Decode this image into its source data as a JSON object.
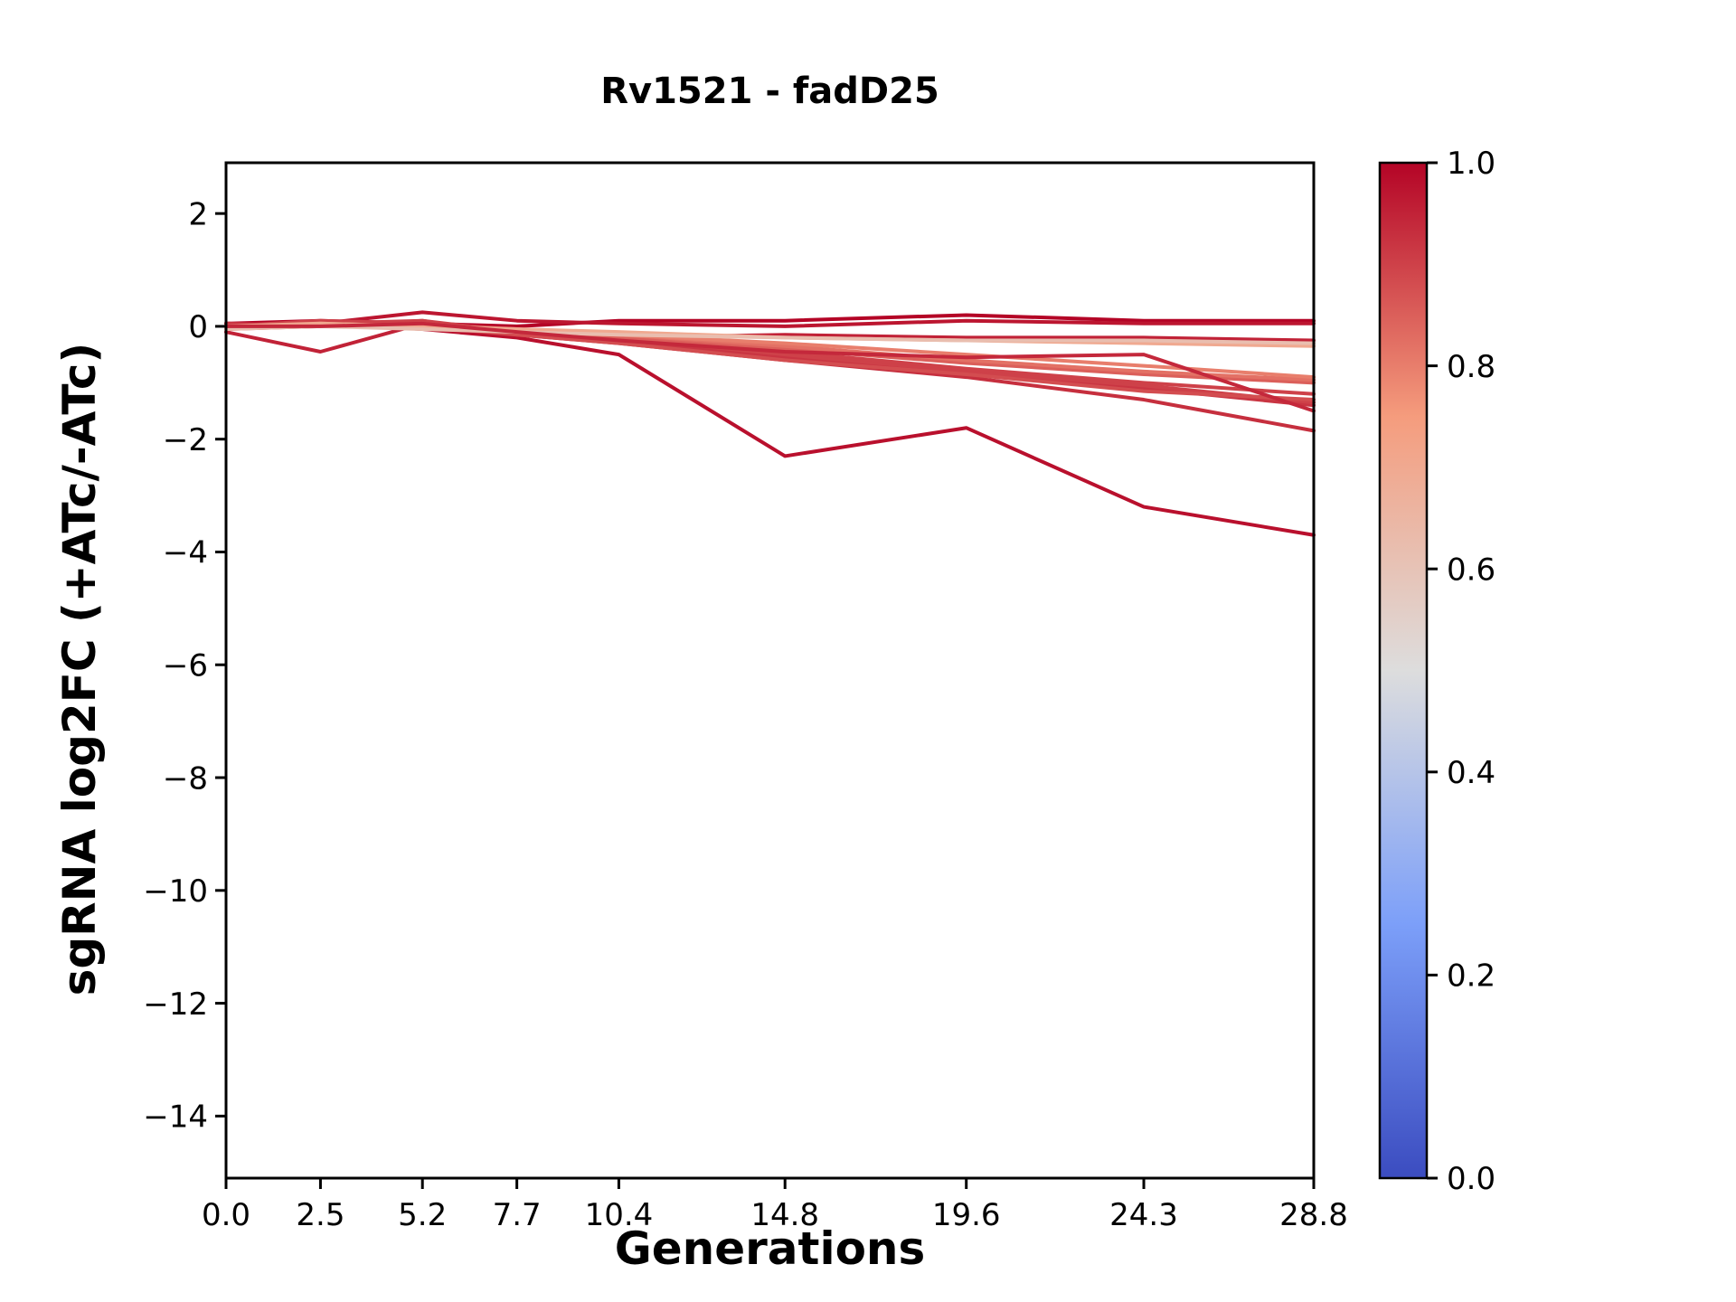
{
  "chart_data": {
    "type": "line",
    "title": "Rv1521 - fadD25",
    "xlabel": "Generations",
    "ylabel": "sgRNA log2FC (+ATc/-ATc)",
    "x": [
      0.0,
      2.5,
      5.2,
      7.7,
      10.4,
      14.8,
      19.6,
      24.3,
      28.8
    ],
    "x_tick_labels": [
      "0.0",
      "2.5",
      "5.2",
      "7.7",
      "10.4",
      "14.8",
      "19.6",
      "24.3",
      "28.8"
    ],
    "y_ticks": [
      2,
      0,
      -2,
      -4,
      -6,
      -8,
      -10,
      -12,
      -14
    ],
    "xlim": [
      0,
      28.8
    ],
    "ylim": [
      -15.1,
      2.9
    ],
    "grid": false,
    "legend": "none",
    "colorbar": {
      "range": [
        0.0,
        1.0
      ],
      "ticks": [
        1.0,
        0.8,
        0.6,
        0.4,
        0.2,
        0.0
      ],
      "colormap": "coolwarm",
      "anchors": [
        {
          "pos": 0.0,
          "color": "#3b4cc0"
        },
        {
          "pos": 0.25,
          "color": "#7c9ff9"
        },
        {
          "pos": 0.5,
          "color": "#dddddd"
        },
        {
          "pos": 0.75,
          "color": "#f59c7d"
        },
        {
          "pos": 1.0,
          "color": "#b40426"
        }
      ]
    },
    "series": [
      {
        "name": "series-01",
        "colormap_value": 1.0,
        "values": [
          0.05,
          0.1,
          0.05,
          0.0,
          0.1,
          0.1,
          0.2,
          0.1,
          0.1
        ]
      },
      {
        "name": "series-02",
        "colormap_value": 0.97,
        "values": [
          0.0,
          0.05,
          0.25,
          0.1,
          0.05,
          0.0,
          0.1,
          0.05,
          0.05
        ]
      },
      {
        "name": "series-03",
        "colormap_value": 0.95,
        "values": [
          -0.1,
          -0.45,
          0.05,
          -0.15,
          -0.2,
          -0.15,
          -0.2,
          -0.2,
          -0.25
        ]
      },
      {
        "name": "series-04",
        "colormap_value": 0.98,
        "values": [
          0.0,
          0.05,
          -0.05,
          -0.2,
          -0.5,
          -2.3,
          -1.8,
          -3.2,
          -3.7
        ]
      },
      {
        "name": "series-05",
        "colormap_value": 0.93,
        "values": [
          0.0,
          0.0,
          0.1,
          -0.15,
          -0.3,
          -0.6,
          -0.9,
          -1.3,
          -1.85
        ]
      },
      {
        "name": "series-06",
        "colormap_value": 0.92,
        "values": [
          0.05,
          0.0,
          0.05,
          -0.1,
          -0.25,
          -0.55,
          -0.85,
          -1.1,
          -1.4
        ]
      },
      {
        "name": "series-07",
        "colormap_value": 0.9,
        "values": [
          0.0,
          0.05,
          0.1,
          -0.1,
          -0.2,
          -0.5,
          -0.8,
          -1.05,
          -1.35
        ]
      },
      {
        "name": "series-08",
        "colormap_value": 0.88,
        "values": [
          -0.05,
          0.0,
          0.0,
          -0.15,
          -0.3,
          -0.6,
          -0.85,
          -1.15,
          -1.3
        ]
      },
      {
        "name": "series-09",
        "colormap_value": 0.9,
        "values": [
          0.0,
          0.1,
          0.05,
          -0.05,
          -0.2,
          -0.45,
          -0.75,
          -1.0,
          -1.2
        ]
      },
      {
        "name": "series-10",
        "colormap_value": 0.85,
        "values": [
          0.0,
          0.0,
          0.05,
          -0.1,
          -0.2,
          -0.4,
          -0.65,
          -0.85,
          -1.0
        ]
      },
      {
        "name": "series-11",
        "colormap_value": 0.82,
        "values": [
          -0.05,
          0.05,
          0.0,
          -0.1,
          -0.15,
          -0.35,
          -0.6,
          -0.8,
          -0.95
        ]
      },
      {
        "name": "series-12",
        "colormap_value": 0.8,
        "values": [
          0.0,
          0.0,
          0.0,
          -0.05,
          -0.15,
          -0.3,
          -0.5,
          -0.7,
          -0.9
        ]
      },
      {
        "name": "series-13",
        "colormap_value": 0.7,
        "values": [
          0.0,
          0.05,
          0.0,
          -0.05,
          -0.1,
          -0.2,
          -0.25,
          -0.3,
          -0.35
        ]
      },
      {
        "name": "series-14",
        "colormap_value": 0.62,
        "values": [
          -0.05,
          0.0,
          -0.05,
          -0.1,
          -0.15,
          -0.2,
          -0.25,
          -0.25,
          -0.3
        ]
      },
      {
        "name": "series-15",
        "colormap_value": 0.94,
        "values": [
          0.0,
          0.0,
          0.05,
          -0.1,
          -0.25,
          -0.45,
          -0.55,
          -0.5,
          -1.5
        ]
      }
    ],
    "style": {
      "line_width": 4,
      "spine_color": "#000000",
      "background": "#ffffff"
    }
  }
}
